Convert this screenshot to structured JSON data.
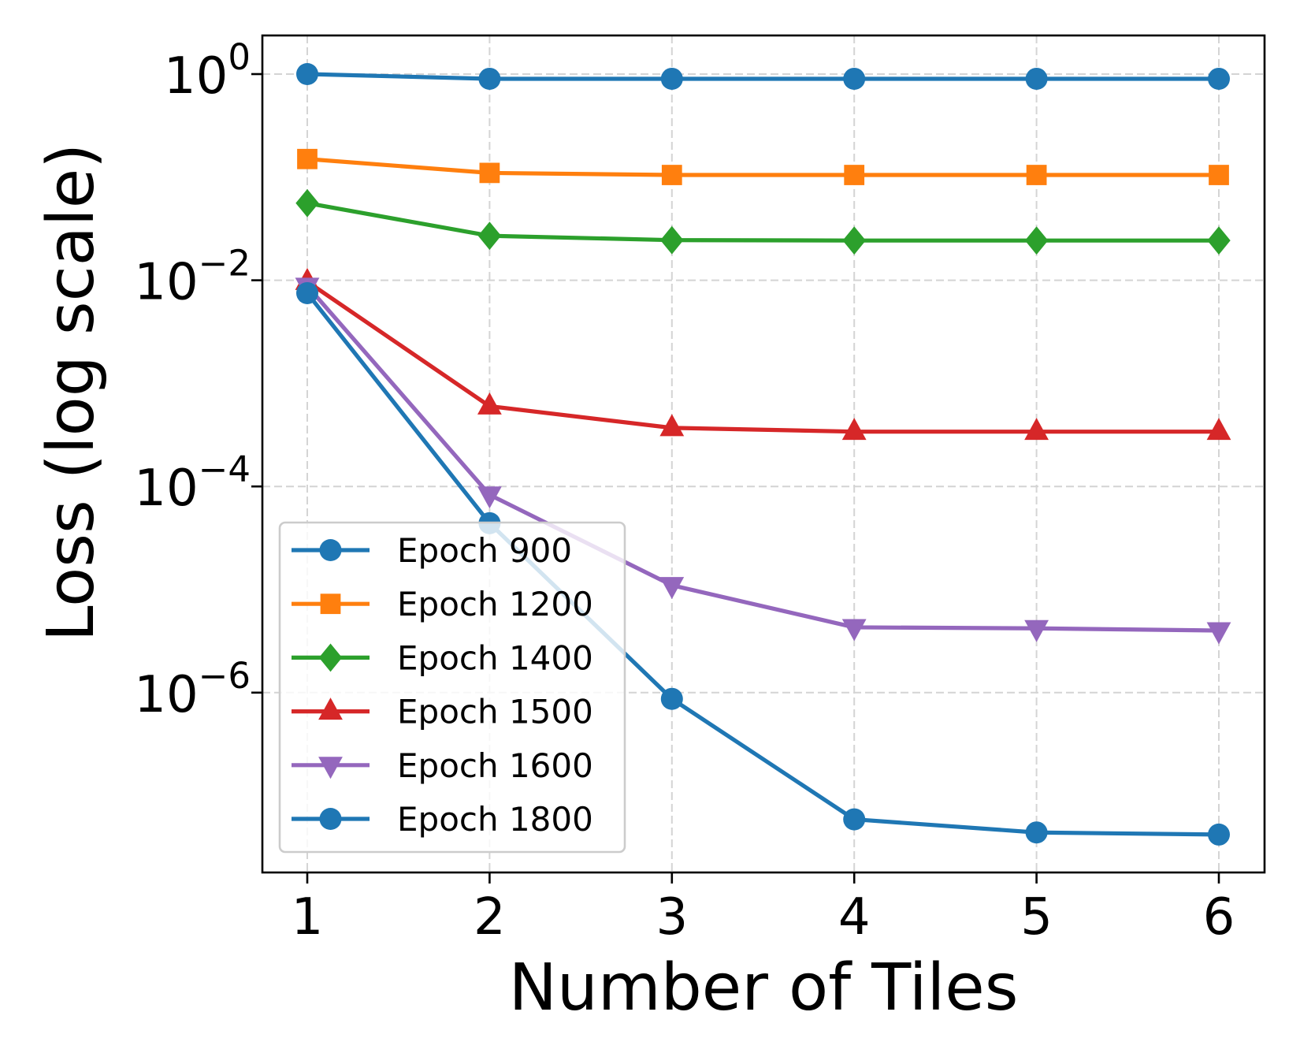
{
  "chart_data": {
    "type": "line",
    "title": "",
    "xlabel": "Number of Tiles",
    "ylabel": "Loss (log scale)",
    "yscale": "log",
    "x": [
      1,
      2,
      3,
      4,
      5,
      6
    ],
    "x_ticks": [
      "1",
      "2",
      "3",
      "4",
      "5",
      "6"
    ],
    "xlim": [
      0.75,
      6.25
    ],
    "y_ticks": [
      {
        "value": 1,
        "base": "10",
        "exp": "0"
      },
      {
        "value": 0.01,
        "base": "10",
        "exp": "−2"
      },
      {
        "value": 0.0001,
        "base": "10",
        "exp": "−4"
      },
      {
        "value": 1e-06,
        "base": "10",
        "exp": "−6"
      }
    ],
    "ylim": [
      2e-08,
      2.3
    ],
    "grid": true,
    "legend_position": "lower left",
    "series": [
      {
        "name": "Epoch 900",
        "color": "#1f77b4",
        "marker": "circle",
        "values": [
          1.0,
          0.9,
          0.9,
          0.9,
          0.9,
          0.9
        ]
      },
      {
        "name": "Epoch 1200",
        "color": "#ff7f0e",
        "marker": "square",
        "values": [
          0.15,
          0.11,
          0.105,
          0.105,
          0.105,
          0.105
        ]
      },
      {
        "name": "Epoch 1400",
        "color": "#2ca02c",
        "marker": "diamond",
        "values": [
          0.056,
          0.027,
          0.0245,
          0.0243,
          0.0243,
          0.0243
        ]
      },
      {
        "name": "Epoch 1500",
        "color": "#d62728",
        "marker": "triangle-up",
        "values": [
          0.0097,
          0.0006,
          0.00037,
          0.00034,
          0.00034,
          0.00034
        ]
      },
      {
        "name": "Epoch 1600",
        "color": "#9467bd",
        "marker": "triangle-down",
        "values": [
          0.0088,
          8.3e-05,
          1.1e-05,
          4.3e-06,
          4.2e-06,
          4e-06
        ]
      },
      {
        "name": "Epoch 1800",
        "color": "#1f77b4",
        "marker": "circle",
        "values": [
          0.0075,
          4.4e-05,
          8.7e-07,
          5.9e-08,
          4.4e-08,
          4.2e-08
        ]
      }
    ]
  }
}
